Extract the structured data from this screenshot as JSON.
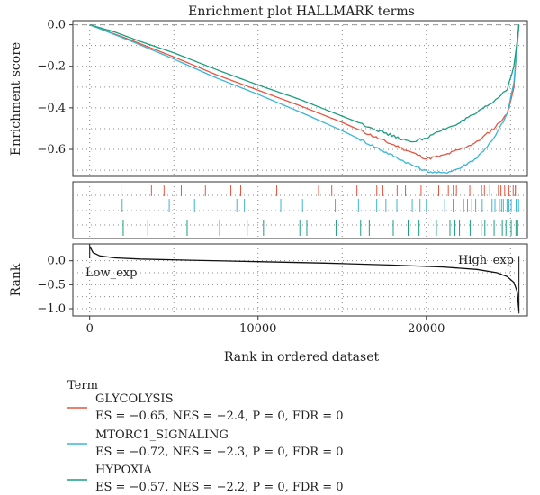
{
  "chart_data": {
    "type": "line",
    "title": "Enrichment plot HALLMARK terms",
    "xlabel": "Rank in ordered dataset",
    "xlim": [
      -1000,
      26000
    ],
    "x_ticks": [
      0,
      10000,
      20000
    ],
    "x_tick_labels": [
      "0",
      "10000",
      "20000"
    ],
    "grid": true,
    "panels": {
      "enrichment": {
        "ylabel": "Enrichment score",
        "ylim": [
          -0.73,
          0.02
        ],
        "y_ticks": [
          0.0,
          -0.2,
          -0.4,
          -0.6
        ],
        "y_tick_labels": [
          "0.0",
          "−0.2",
          "−0.4",
          "−0.6"
        ]
      },
      "rank": {
        "ylabel": "Rank",
        "ylim": [
          -1.15,
          0.35
        ],
        "y_ticks": [
          0.0,
          -0.5,
          -1.0
        ],
        "y_tick_labels": [
          "0.0",
          "−0.5",
          "−1.0"
        ],
        "annotations": [
          "Low_exp",
          "High_exp"
        ]
      }
    },
    "series": [
      {
        "name": "GLYCOLYSIS",
        "stats": "ES = −0.65, NES = −2.4, P = 0, FDR = 0",
        "color": "#e8543f",
        "x": [
          0,
          2500,
          5000,
          7500,
          10000,
          12500,
          15000,
          17500,
          19000,
          20000,
          21000,
          22000,
          23000,
          24000,
          24800,
          25200,
          25500
        ],
        "values": [
          0,
          -0.075,
          -0.155,
          -0.24,
          -0.315,
          -0.39,
          -0.47,
          -0.56,
          -0.61,
          -0.645,
          -0.63,
          -0.6,
          -0.565,
          -0.5,
          -0.43,
          -0.3,
          0
        ]
      },
      {
        "name": "MTORC1_SIGNALING",
        "stats": "ES = −0.72, NES = −2.3, P = 0, FDR = 0",
        "color": "#3ab5d8",
        "x": [
          0,
          2500,
          5000,
          7500,
          10000,
          12500,
          15000,
          17500,
          19000,
          20000,
          21000,
          22000,
          23000,
          24000,
          24800,
          25200,
          25500
        ],
        "values": [
          0,
          -0.08,
          -0.165,
          -0.255,
          -0.335,
          -0.42,
          -0.51,
          -0.61,
          -0.67,
          -0.705,
          -0.715,
          -0.69,
          -0.64,
          -0.55,
          -0.43,
          -0.28,
          0
        ]
      },
      {
        "name": "HYPOXIA",
        "stats": "ES = −0.57, NES = −2.2, P = 0, FDR = 0",
        "color": "#1a9e80",
        "x": [
          0,
          1500,
          3000,
          5000,
          7500,
          10000,
          12500,
          15000,
          17500,
          19000,
          20000,
          21000,
          22000,
          23000,
          24000,
          24800,
          25200,
          25500
        ],
        "values": [
          0,
          -0.035,
          -0.08,
          -0.135,
          -0.215,
          -0.29,
          -0.36,
          -0.44,
          -0.52,
          -0.565,
          -0.545,
          -0.505,
          -0.47,
          -0.425,
          -0.37,
          -0.31,
          -0.2,
          0
        ]
      }
    ],
    "rank_curve": {
      "x": [
        0,
        200,
        600,
        1500,
        3000,
        6000,
        10000,
        14000,
        18000,
        21000,
        23000,
        24200,
        24800,
        25200,
        25400,
        25500
      ],
      "values": [
        0.3,
        0.17,
        0.1,
        0.06,
        0.035,
        0.01,
        -0.02,
        -0.05,
        -0.09,
        -0.13,
        -0.18,
        -0.25,
        -0.33,
        -0.45,
        -0.65,
        -1.05
      ]
    },
    "legend": {
      "title": "Term",
      "placement": "bottom-left"
    }
  }
}
